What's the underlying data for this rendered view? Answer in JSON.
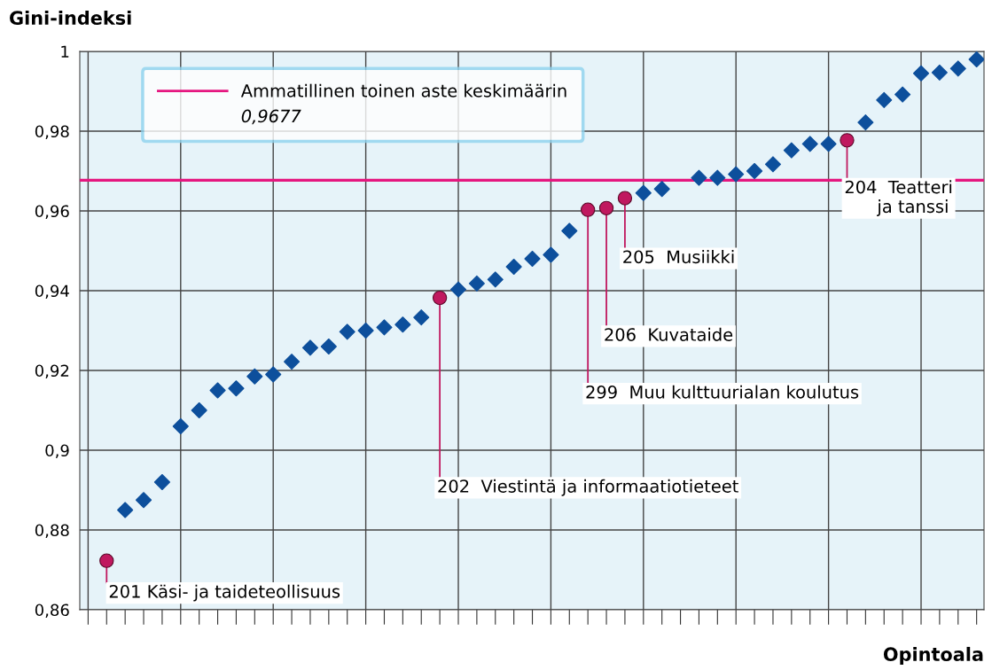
{
  "chart_data": {
    "type": "scatter",
    "xlabel": "Opintoala",
    "ylabel": "Gini-indeksi",
    "categories": [
      null,
      null,
      null,
      null,
      null,
      null,
      null,
      null,
      null,
      null,
      null,
      null,
      null,
      null,
      null,
      null,
      null,
      null,
      null,
      null,
      null,
      null,
      null,
      null,
      null,
      null,
      null,
      null,
      null,
      null,
      null,
      null,
      null,
      null,
      null,
      null,
      null,
      null,
      null,
      null,
      null,
      null,
      null,
      null,
      null,
      null,
      null,
      null,
      null
    ],
    "series": [
      {
        "color": "#0d4f9c",
        "marker": "diamond",
        "values": [
          null,
          null,
          0.885,
          0.8875,
          0.892,
          0.906,
          0.91,
          0.915,
          0.9155,
          0.9185,
          0.919,
          0.9222,
          0.9257,
          0.926,
          0.9297,
          0.93,
          0.9308,
          0.9315,
          0.9333,
          null,
          0.9403,
          0.9418,
          0.9428,
          0.946,
          0.948,
          0.949,
          0.955,
          null,
          null,
          null,
          0.9645,
          0.9655,
          null,
          0.9683,
          0.9683,
          0.9692,
          0.97,
          0.9717,
          0.9752,
          0.9768,
          0.9768,
          null,
          0.9822,
          0.9878,
          0.9892,
          0.9945,
          0.9947,
          0.9957,
          0.998
        ]
      },
      {
        "color": "#c0185f",
        "marker": "circle",
        "values": [
          null,
          0.8723,
          null,
          null,
          null,
          null,
          null,
          null,
          null,
          null,
          null,
          null,
          null,
          null,
          null,
          null,
          null,
          null,
          null,
          0.9382,
          null,
          null,
          null,
          null,
          null,
          null,
          null,
          0.9603,
          0.9607,
          0.9632,
          null,
          null,
          null,
          null,
          null,
          null,
          null,
          null,
          null,
          null,
          null,
          0.9777,
          null,
          null,
          null,
          null,
          null,
          null,
          null
        ]
      }
    ],
    "annotations": [
      "201 Käsi- ja taideteollisuus",
      "202  Viestintä ja informaatiotieteet",
      "299  Muu kulttuurialan koulutus",
      "206  Kuvataide",
      "205  Musiikki",
      "204  Teatteri\n      ja tanssi"
    ],
    "ref_lines": [
      {
        "axis": "y",
        "value": 0.9677,
        "label": "Ammatillinen toinen aste keskimäärin\n0,9677",
        "color": "#e5167f"
      }
    ],
    "ylim": [
      0.86,
      1
    ],
    "yticks": [
      {
        "value": 0.86,
        "label": "0,86"
      },
      {
        "value": 0.88,
        "label": "0,88"
      },
      {
        "value": 0.9,
        "label": "0,9"
      },
      {
        "value": 0.92,
        "label": "0,92"
      },
      {
        "value": 0.94,
        "label": "0,94"
      },
      {
        "value": 0.96,
        "label": "0,96"
      },
      {
        "value": 0.98,
        "label": "0,98"
      },
      {
        "value": 1,
        "label": "1"
      }
    ],
    "grid": true,
    "legend": "top left"
  }
}
